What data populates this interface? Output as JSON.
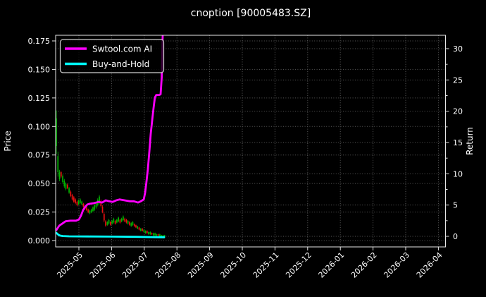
{
  "chart_data": {
    "type": "mixed",
    "subtypes": [
      "candlestick",
      "line"
    ],
    "title": "cnoption [90005483.SZ]",
    "ylabel_left": "Price",
    "ylabel_right": "Return",
    "x_tick_labels": [
      "2025-05",
      "2025-06",
      "2025-07",
      "2025-08",
      "2025-09",
      "2025-10",
      "2025-11",
      "2025-12",
      "2026-01",
      "2026-02",
      "2026-03",
      "2026-04"
    ],
    "price_ticks": [
      0.0,
      0.025,
      0.05,
      0.075,
      0.1,
      0.125,
      0.15,
      0.175
    ],
    "return_ticks": [
      0,
      5,
      10,
      15,
      20,
      25,
      30
    ],
    "return_minor_step": 2.5,
    "axis_ranges": {
      "price": [
        -0.006,
        0.18
      ],
      "return": [
        -1.7,
        32.1
      ],
      "x": [
        "2025-04-10",
        "2026-04-05"
      ]
    },
    "grid": true,
    "legend_position": "upper-left",
    "legend": [
      {
        "label": "Swtool.com AI",
        "color": "#ff00ff"
      },
      {
        "label": "Buy-and-Hold",
        "color": "#00ffff"
      }
    ],
    "colors": {
      "background": "#000000",
      "foreground": "#ffffff",
      "spine": "#e6e6e6",
      "grid": "#6e6e6e",
      "candle_up": "#00b400",
      "candle_down": "#ee1111",
      "ai_line": "#ff00ff",
      "bh_line": "#00ffff"
    },
    "candles_note": "estimated OHLC envelope per trading day, [low, high, direction(1=up,0=down)], prices on left axis; data span approx 2025-04-11 to 2025-07-21",
    "candles": [
      [
        0.076,
        0.114,
        1
      ],
      [
        0.056,
        0.078,
        1
      ],
      [
        0.052,
        0.062,
        1
      ],
      [
        0.055,
        0.061,
        0
      ],
      [
        0.05,
        0.058,
        1
      ],
      [
        0.046,
        0.054,
        1
      ],
      [
        0.044,
        0.051,
        1
      ],
      [
        0.045,
        0.05,
        0
      ],
      [
        0.041,
        0.047,
        1
      ],
      [
        0.038,
        0.044,
        0
      ],
      [
        0.035,
        0.041,
        0
      ],
      [
        0.033,
        0.039,
        0
      ],
      [
        0.032,
        0.037,
        0
      ],
      [
        0.03,
        0.035,
        0
      ],
      [
        0.031,
        0.036,
        1
      ],
      [
        0.032,
        0.037,
        1
      ],
      [
        0.031,
        0.035,
        1
      ],
      [
        0.029,
        0.033,
        0
      ],
      [
        0.027,
        0.031,
        0
      ],
      [
        0.026,
        0.03,
        0
      ],
      [
        0.024,
        0.028,
        0
      ],
      [
        0.023,
        0.027,
        1
      ],
      [
        0.024,
        0.028,
        1
      ],
      [
        0.025,
        0.03,
        1
      ],
      [
        0.026,
        0.032,
        1
      ],
      [
        0.028,
        0.034,
        1
      ],
      [
        0.03,
        0.037,
        1
      ],
      [
        0.032,
        0.04,
        1
      ],
      [
        0.029,
        0.036,
        0
      ],
      [
        0.024,
        0.031,
        0
      ],
      [
        0.016,
        0.025,
        0
      ],
      [
        0.012,
        0.018,
        0
      ],
      [
        0.013,
        0.017,
        1
      ],
      [
        0.014,
        0.019,
        1
      ],
      [
        0.013,
        0.017,
        0
      ],
      [
        0.014,
        0.018,
        1
      ],
      [
        0.015,
        0.02,
        1
      ],
      [
        0.014,
        0.018,
        0
      ],
      [
        0.015,
        0.019,
        1
      ],
      [
        0.016,
        0.021,
        1
      ],
      [
        0.015,
        0.019,
        0
      ],
      [
        0.016,
        0.02,
        1
      ],
      [
        0.017,
        0.022,
        1
      ],
      [
        0.016,
        0.02,
        0
      ],
      [
        0.015,
        0.019,
        0
      ],
      [
        0.014,
        0.018,
        1
      ],
      [
        0.013,
        0.017,
        0
      ],
      [
        0.012,
        0.016,
        1
      ],
      [
        0.013,
        0.017,
        1
      ],
      [
        0.012,
        0.015,
        0
      ],
      [
        0.011,
        0.014,
        0
      ],
      [
        0.01,
        0.013,
        1
      ],
      [
        0.009,
        0.012,
        0
      ],
      [
        0.008,
        0.011,
        1
      ],
      [
        0.008,
        0.011,
        0
      ],
      [
        0.007,
        0.01,
        1
      ],
      [
        0.006,
        0.009,
        1
      ],
      [
        0.006,
        0.009,
        0
      ],
      [
        0.005,
        0.008,
        1
      ],
      [
        0.005,
        0.008,
        1
      ],
      [
        0.005,
        0.007,
        0
      ],
      [
        0.004,
        0.007,
        1
      ],
      [
        0.004,
        0.007,
        1
      ],
      [
        0.004,
        0.006,
        1
      ],
      [
        0.004,
        0.006,
        0
      ],
      [
        0.003,
        0.006,
        1
      ],
      [
        0.003,
        0.005,
        1
      ],
      [
        0.003,
        0.005,
        1
      ],
      [
        0.003,
        0.005,
        1
      ]
    ],
    "series": [
      {
        "name": "Swtool.com AI",
        "axis": "return",
        "points": [
          [
            0,
            1.0
          ],
          [
            1.8,
            1.7
          ],
          [
            3.5,
            2.0
          ],
          [
            5.8,
            2.4
          ],
          [
            8.8,
            2.5
          ],
          [
            12.4,
            2.5
          ],
          [
            14.2,
            2.7
          ],
          [
            15.5,
            3.3
          ],
          [
            16.8,
            4.2
          ],
          [
            18.1,
            4.7
          ],
          [
            19.5,
            5.1
          ],
          [
            20.8,
            5.2
          ],
          [
            23.5,
            5.3
          ],
          [
            26.5,
            5.5
          ],
          [
            28.8,
            5.4
          ],
          [
            31.0,
            5.75
          ],
          [
            33.2,
            5.6
          ],
          [
            35.4,
            5.5
          ],
          [
            37.6,
            5.75
          ],
          [
            39.8,
            5.9
          ],
          [
            42.9,
            5.75
          ],
          [
            46.0,
            5.6
          ],
          [
            48.7,
            5.6
          ],
          [
            51.3,
            5.4
          ],
          [
            53.1,
            5.6
          ],
          [
            54.9,
            5.9
          ],
          [
            55.8,
            7.0
          ],
          [
            56.6,
            8.7
          ],
          [
            57.5,
            10.7
          ],
          [
            58.4,
            13.5
          ],
          [
            59.3,
            16.4
          ],
          [
            60.2,
            18.6
          ],
          [
            61.1,
            20.6
          ],
          [
            61.9,
            22.2
          ],
          [
            62.8,
            22.6
          ],
          [
            64.6,
            22.6
          ],
          [
            65.5,
            22.7
          ],
          [
            66.2,
            25.4
          ],
          [
            66.6,
            29.9
          ],
          [
            66.8,
            32.1
          ]
        ]
      },
      {
        "name": "Buy-and-Hold",
        "axis": "return",
        "points": [
          [
            0,
            0.55
          ],
          [
            1,
            0.3
          ],
          [
            2,
            0.15
          ],
          [
            4,
            0.05
          ],
          [
            8,
            0.0
          ],
          [
            20,
            -0.02
          ],
          [
            35,
            -0.05
          ],
          [
            50,
            -0.08
          ],
          [
            60,
            -0.12
          ],
          [
            67.7,
            -0.15
          ]
        ]
      }
    ]
  }
}
